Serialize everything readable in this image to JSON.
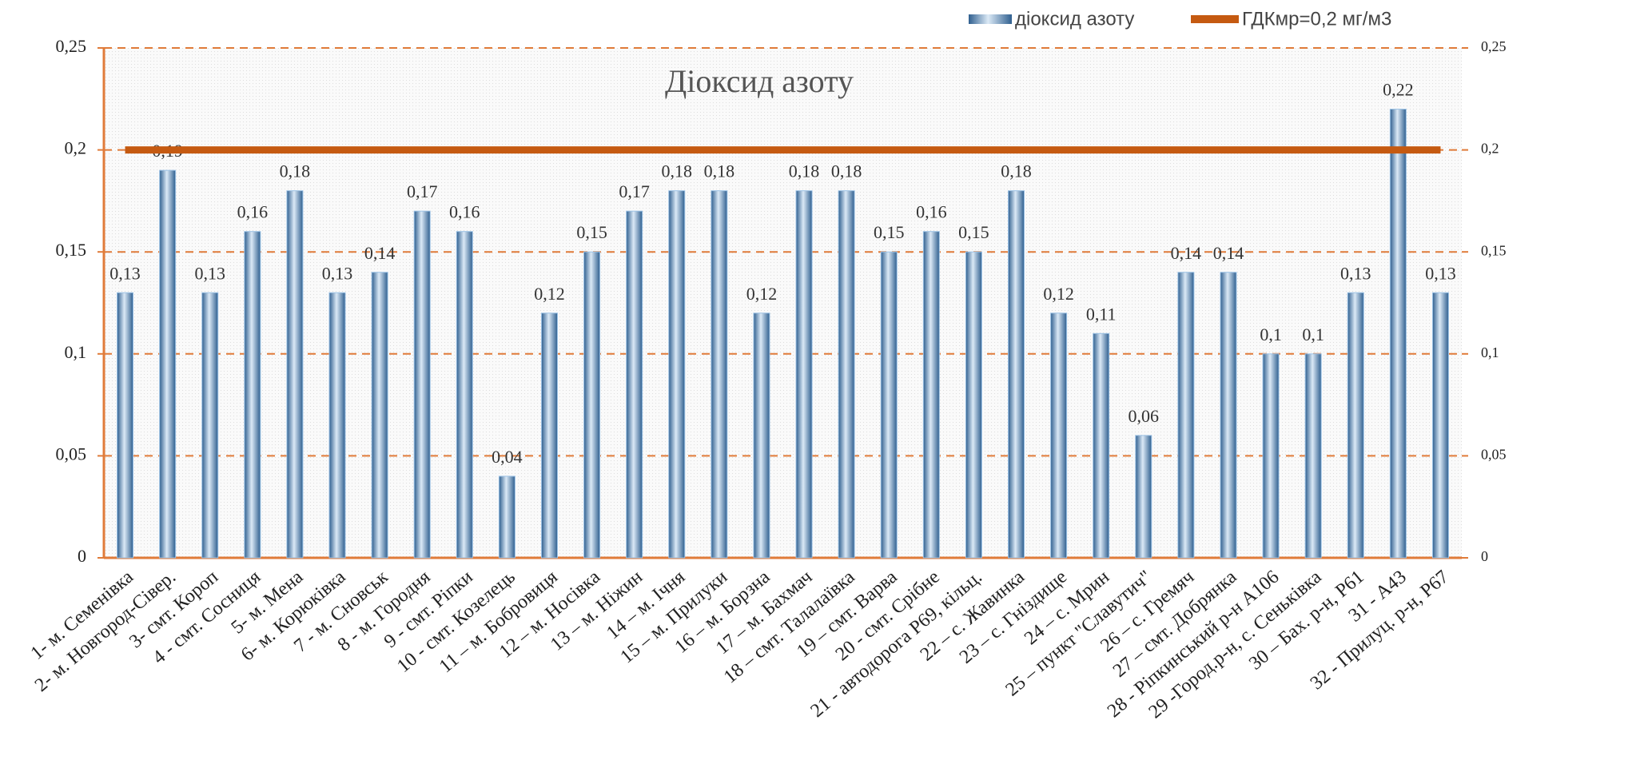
{
  "chart_data": {
    "type": "bar",
    "title": "Діоксид азоту",
    "categories": [
      "1- м. Семенівка",
      "2- м. Новгород-Сівер.",
      "3- смт. Короп",
      "4 - смт. Сосниця",
      "5- м. Мена",
      "6- м. Корюківка",
      "7 - м. Сновськ",
      "8 - м. Городня",
      "9 - смт. Ріпки",
      "10 - смт. Козелець",
      "11 – м. Бобровиця",
      "12 – м. Носівка",
      "13 – м. Ніжин",
      "14 – м. Ічня",
      "15 – м. Прилуки",
      "16 – м. Борзна",
      "17 – м. Бахмач",
      "18 – смт. Талалаївка",
      "19 – смт. Варва",
      "20 - смт. Срібне",
      "21 - автодорога Р69, кільц.",
      "22 – с. Жавинка",
      "23 – с. Гніздище",
      "24 – с. Мрин",
      "25 – пункт \"Славутич\"",
      "26 – с. Гремяч",
      "27 – смт. Добрянка",
      "28 - Ріпкинський р-н  А106",
      "29 -Город.р-н, с. Сеньківка",
      "30 – Бах. р-н,  Р61",
      "31 -  А43",
      "32 - Прилуц. р-н,  Р67"
    ],
    "series": [
      {
        "name": "діоксид азоту",
        "type": "bar",
        "color": "#4f86b8",
        "values": [
          0.13,
          0.19,
          0.13,
          0.16,
          0.18,
          0.13,
          0.14,
          0.17,
          0.16,
          0.04,
          0.12,
          0.15,
          0.17,
          0.18,
          0.18,
          0.12,
          0.18,
          0.18,
          0.15,
          0.16,
          0.15,
          0.18,
          0.12,
          0.11,
          0.06,
          0.14,
          0.14,
          0.1,
          0.1,
          0.13,
          0.22,
          0.13
        ],
        "value_labels": [
          "0,13",
          "0,19",
          "0,13",
          "0,16",
          "0,18",
          "0,13",
          "0,14",
          "0,17",
          "0,16",
          "0,04",
          "0,12",
          "0,15",
          "0,17",
          "0,18",
          "0,18",
          "0,12",
          "0,18",
          "0,18",
          "0,15",
          "0,16",
          "0,15",
          "0,18",
          "0,12",
          "0,11",
          "0,06",
          "0,14",
          "0,14",
          "0,1",
          "0,1",
          "0,13",
          "0,22",
          "0,13"
        ]
      },
      {
        "name": "ГДКмр=0,2 мг/м3",
        "type": "line",
        "color": "#c55a11",
        "values": [
          0.2,
          0.2,
          0.2,
          0.2,
          0.2,
          0.2,
          0.2,
          0.2,
          0.2,
          0.2,
          0.2,
          0.2,
          0.2,
          0.2,
          0.2,
          0.2,
          0.2,
          0.2,
          0.2,
          0.2,
          0.2,
          0.2,
          0.2,
          0.2,
          0.2,
          0.2,
          0.2,
          0.2,
          0.2,
          0.2,
          0.2,
          0.2
        ]
      }
    ],
    "ylim": [
      0,
      0.25
    ],
    "yticks": [
      0,
      {
        "value": 0.05,
        "label": "0,05"
      },
      {
        "value": 0.1,
        "label": "0,1"
      },
      {
        "value": 0.15,
        "label": "0,15"
      },
      {
        "value": 0.2,
        "label": "0,2"
      },
      {
        "value": 0.25,
        "label": "0,25"
      }
    ],
    "y2lim": [
      0,
      0.25
    ],
    "y2ticks": [
      0,
      {
        "value": 0.05,
        "label": "0,05"
      },
      {
        "value": 0.1,
        "label": "0,1"
      },
      {
        "value": 0.15,
        "label": "0,15"
      },
      {
        "value": 0.2,
        "label": "0,2"
      },
      {
        "value": 0.25,
        "label": "0,25"
      }
    ],
    "grid": true,
    "grid_color": "#e07b39",
    "axis_color": "#e07b39",
    "legend": "top"
  }
}
